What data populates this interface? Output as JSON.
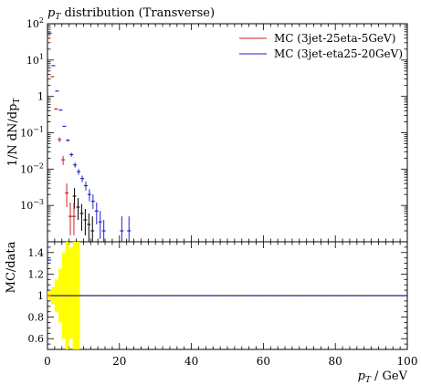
{
  "chart_data": {
    "type": "scatter",
    "title": "p_T distribution (Transverse)",
    "title_parts": {
      "main": "p",
      "sub": "T",
      "rest": " distribution (Transverse)"
    },
    "xlabel": "p_T / GeV",
    "xlabel_parts": {
      "main": "p",
      "sub": "T",
      "rest": "/ GeV"
    },
    "ylabel": "1/N dN/dp_T",
    "ylabel_parts": {
      "main": "1/N dN/dp",
      "sub": "T"
    },
    "ratio_ylabel": "MC/data",
    "x_range": [
      0,
      100
    ],
    "y_range_log": [
      0.0001,
      100
    ],
    "ratio_range": [
      0.5,
      1.5
    ],
    "x_ticks": [
      "0",
      "20",
      "40",
      "60",
      "80",
      "100"
    ],
    "y_ticks": [
      "10^2",
      "10",
      "1",
      "10^-1",
      "10^-2",
      "10^-3"
    ],
    "y_tick_parts": [
      {
        "value": 100,
        "base": "10",
        "exp": "2"
      },
      {
        "value": 10,
        "base": "10",
        "exp": "1"
      },
      {
        "value": 1,
        "base": "1",
        "exp": ""
      },
      {
        "value": 0.1,
        "base": "10",
        "exp": "−1"
      },
      {
        "value": 0.01,
        "base": "10",
        "exp": "−2"
      },
      {
        "value": 0.001,
        "base": "10",
        "exp": "−3"
      }
    ],
    "ratio_ticks": [
      "1.4",
      "1.2",
      "1",
      "0.8",
      "0.6"
    ],
    "legend_position": "top-right",
    "series": [
      {
        "name": "MC (3jet-25eta-5GeV)",
        "color": "#cc2222",
        "points": [
          {
            "x": 0.5,
            "y": 40,
            "lo": 40,
            "hi": 40
          },
          {
            "x": 1.5,
            "y": 3.5,
            "lo": 3.5,
            "hi": 3.5
          },
          {
            "x": 2.5,
            "y": 0.45,
            "lo": 0.43,
            "hi": 0.47
          },
          {
            "x": 3.5,
            "y": 0.065,
            "lo": 0.055,
            "hi": 0.075
          },
          {
            "x": 4.5,
            "y": 0.018,
            "lo": 0.013,
            "hi": 0.023
          },
          {
            "x": 5.5,
            "y": 0.0022,
            "lo": 0.0009,
            "hi": 0.004
          },
          {
            "x": 6.5,
            "y": 0.0005,
            "lo": 0.00015,
            "hi": 0.0012
          },
          {
            "x": 7.5,
            "y": 0.0005,
            "lo": 0.00015,
            "hi": 0.0012
          }
        ]
      },
      {
        "name": "MC (3jet-eta25-20GeV)",
        "color": "#2222cc",
        "points": [
          {
            "x": 0.5,
            "y": 55,
            "lo": 55,
            "hi": 55
          },
          {
            "x": 1.5,
            "y": 7,
            "lo": 7,
            "hi": 7
          },
          {
            "x": 2.5,
            "y": 1.4,
            "lo": 1.4,
            "hi": 1.4
          },
          {
            "x": 3.5,
            "y": 0.42,
            "lo": 0.41,
            "hi": 0.43
          },
          {
            "x": 4.5,
            "y": 0.15,
            "lo": 0.145,
            "hi": 0.155
          },
          {
            "x": 5.5,
            "y": 0.062,
            "lo": 0.058,
            "hi": 0.066
          },
          {
            "x": 6.5,
            "y": 0.025,
            "lo": 0.022,
            "hi": 0.028
          },
          {
            "x": 7.5,
            "y": 0.013,
            "lo": 0.011,
            "hi": 0.015
          },
          {
            "x": 8.5,
            "y": 0.0085,
            "lo": 0.007,
            "hi": 0.01
          },
          {
            "x": 9.5,
            "y": 0.0055,
            "lo": 0.0044,
            "hi": 0.0066
          },
          {
            "x": 10.5,
            "y": 0.0035,
            "lo": 0.0026,
            "hi": 0.0045
          },
          {
            "x": 11.5,
            "y": 0.002,
            "lo": 0.0013,
            "hi": 0.0028
          },
          {
            "x": 12.5,
            "y": 0.0013,
            "lo": 0.0008,
            "hi": 0.002
          },
          {
            "x": 13.5,
            "y": 0.0007,
            "lo": 0.0003,
            "hi": 0.0012
          },
          {
            "x": 14.5,
            "y": 0.00035,
            "lo": 0.00012,
            "hi": 0.0007
          },
          {
            "x": 15.5,
            "y": 0.0002,
            "lo": 0.0001,
            "hi": 0.0004
          },
          {
            "x": 20.5,
            "y": 0.0002,
            "lo": 0.0001,
            "hi": 0.0005
          },
          {
            "x": 22.5,
            "y": 0.0002,
            "lo": 0.0001,
            "hi": 0.0005
          }
        ]
      }
    ],
    "data_points": [
      {
        "x": 7.5,
        "y": 0.0018,
        "lo": 0.0008,
        "hi": 0.003
      },
      {
        "x": 8.5,
        "y": 0.0009,
        "lo": 0.0004,
        "hi": 0.0016
      },
      {
        "x": 9.5,
        "y": 0.0006,
        "lo": 0.0002,
        "hi": 0.0011
      },
      {
        "x": 10.5,
        "y": 0.0004,
        "lo": 0.00015,
        "hi": 0.0008
      },
      {
        "x": 11.5,
        "y": 0.0003,
        "lo": 0.0001,
        "hi": 0.0006
      },
      {
        "x": 12.5,
        "y": 0.0002,
        "lo": 0.0001,
        "hi": 0.0005
      }
    ],
    "ratio_band": [
      {
        "x0": 0,
        "x1": 1,
        "lo": 0.96,
        "hi": 1.04
      },
      {
        "x0": 1,
        "x1": 2,
        "lo": 0.92,
        "hi": 1.08
      },
      {
        "x0": 2,
        "x1": 3,
        "lo": 0.85,
        "hi": 1.15
      },
      {
        "x0": 3,
        "x1": 4,
        "lo": 0.75,
        "hi": 1.25
      },
      {
        "x0": 4,
        "x1": 5,
        "lo": 0.6,
        "hi": 1.4
      },
      {
        "x0": 5,
        "x1": 6,
        "lo": 0.5,
        "hi": 1.5
      },
      {
        "x0": 6,
        "x1": 7,
        "lo": 0.6,
        "hi": 1.45
      },
      {
        "x0": 7,
        "x1": 8,
        "lo": 0.5,
        "hi": 1.5
      },
      {
        "x0": 8,
        "x1": 9,
        "lo": 0.5,
        "hi": 1.5
      }
    ],
    "ratio_series": [
      {
        "name": "MC (3jet-25eta-5GeV)",
        "color": "#cc2222",
        "points": [
          {
            "x": 0.5,
            "y": 1.0
          }
        ]
      },
      {
        "name": "MC (3jet-eta25-20GeV)",
        "color": "#2222cc",
        "points": [
          {
            "x": 0.5,
            "y": 1.33
          }
        ]
      }
    ],
    "colors": {
      "band": "#ffff00",
      "data": "#000000"
    }
  }
}
